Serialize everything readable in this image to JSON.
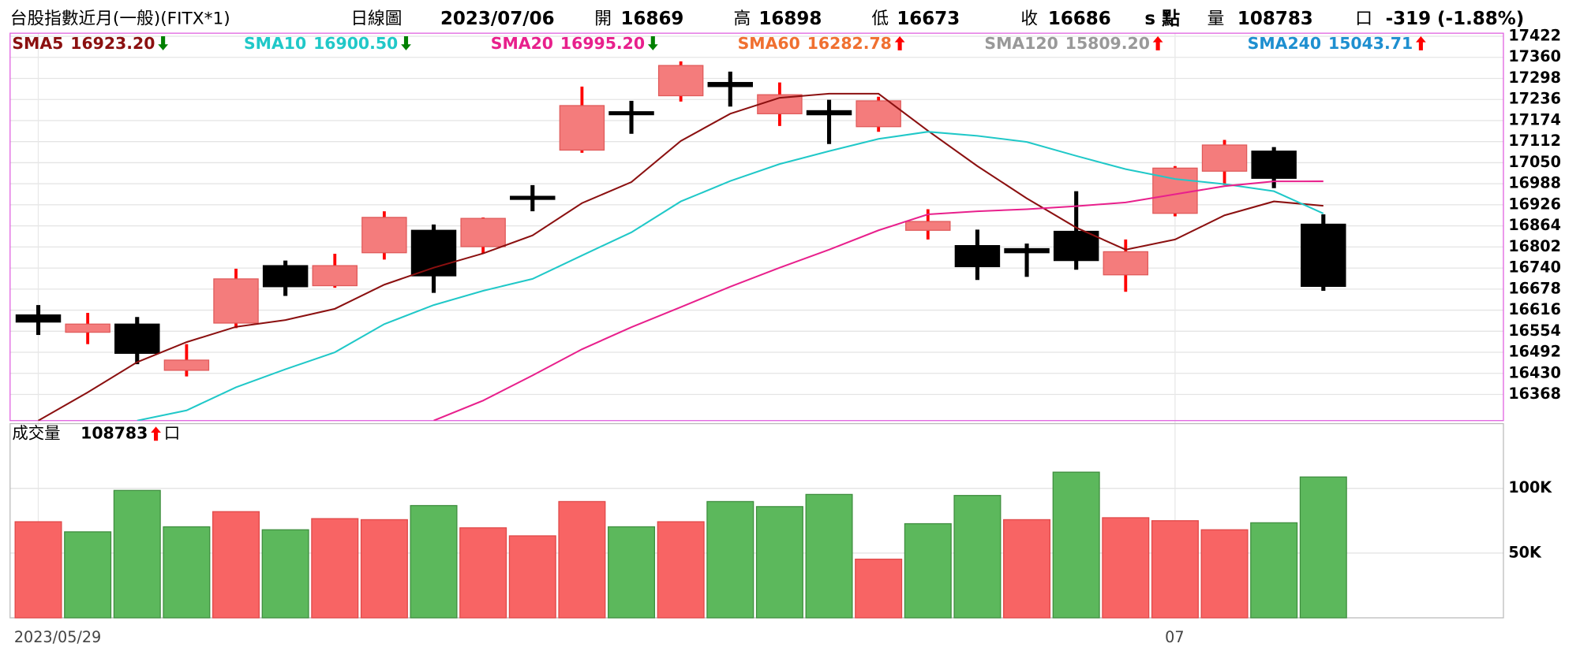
{
  "header": {
    "instrument": "台股指數近月(一般)(FITX*1)",
    "chart_kind": "日線圖",
    "date": "2023/07/06",
    "open_label": "開",
    "open": 16869,
    "high_label": "高",
    "high": 16898,
    "low_label": "低",
    "low": 16673,
    "close_label": "收",
    "close": 16686,
    "unit_label": "s 點",
    "volume_label": "量",
    "volume": 108783,
    "volume_unit": "口",
    "change_label": "-319 (-1.88%)",
    "value_color": "#008a00"
  },
  "chart_data": [
    {
      "type": "candlestick",
      "categories": [
        "2023/05/29",
        null,
        null,
        null,
        null,
        null,
        null,
        null,
        null,
        null,
        null,
        null,
        null,
        null,
        null,
        null,
        null,
        null,
        null,
        null,
        null,
        null,
        null,
        "07",
        null,
        null,
        null
      ],
      "open": [
        16602,
        16551,
        16575,
        16439,
        16578,
        16747,
        16688,
        16785,
        16851,
        16803,
        16951,
        17087,
        17200,
        17247,
        17286,
        17194,
        17203,
        17156,
        16851,
        16806,
        16797,
        16848,
        16720,
        16901,
        17025,
        17084,
        16869
      ],
      "high": [
        16631,
        16608,
        16596,
        16516,
        16738,
        16762,
        16782,
        16907,
        16868,
        16889,
        16984,
        17274,
        17232,
        17348,
        17318,
        17286,
        17235,
        17244,
        16913,
        16853,
        16812,
        16966,
        16824,
        17040,
        17117,
        17096,
        16898
      ],
      "low": [
        16543,
        16516,
        16457,
        16421,
        16563,
        16658,
        16682,
        16765,
        16667,
        16782,
        16907,
        17079,
        17135,
        17230,
        17215,
        17158,
        17105,
        17141,
        16824,
        16705,
        16714,
        16735,
        16670,
        16892,
        16984,
        16975,
        16673
      ],
      "close": [
        16581,
        16575,
        16489,
        16469,
        16708,
        16685,
        16747,
        16889,
        16717,
        16886,
        16942,
        17218,
        17197,
        17336,
        17274,
        17250,
        17191,
        17232,
        16877,
        16744,
        16785,
        16762,
        16788,
        17034,
        17102,
        17004,
        16686
      ],
      "up_color": "#f47c7c",
      "up_wick": "#ff0000",
      "down_color": "#000000",
      "ylim": [
        16291,
        17431
      ],
      "yticks": [
        17422,
        17360,
        17298,
        17236,
        17174,
        17112,
        17050,
        16988,
        16926,
        16864,
        16802,
        16740,
        16678,
        16616,
        16554,
        16492,
        16430,
        16368
      ],
      "grid": true,
      "series": [
        {
          "name": "SMA5",
          "color": "#8b1010",
          "legend_value": {
            "value": 16923.2,
            "label": "16923.20"
          },
          "trend": "down",
          "values": [
            16291,
            16374,
            16463,
            16522,
            16567,
            16587,
            16620,
            16691,
            16741,
            16783,
            16836,
            16931,
            16993,
            17114,
            17194,
            17241,
            17253,
            17253,
            17144,
            17040,
            16945,
            16859,
            16794,
            16824,
            16895,
            16936,
            16923.2
          ]
        },
        {
          "name": "SMA10",
          "color": "#20c8c8",
          "legend_value": {
            "value": 16900.5,
            "label": "16900.50"
          },
          "trend": "down",
          "values": [
            null,
            null,
            16291,
            16321,
            16389,
            16442,
            16492,
            16575,
            16631,
            16673,
            16708,
            16777,
            16845,
            16936,
            16996,
            17046,
            17084,
            17120,
            17141,
            17129,
            17111,
            17070,
            17031,
            17002,
            16987,
            16966,
            16900.5
          ]
        },
        {
          "name": "SMA20",
          "color": "#e8208c",
          "legend_value": {
            "value": 16995.2,
            "label": "16995.20"
          },
          "trend": "down",
          "values": [
            null,
            null,
            null,
            null,
            null,
            null,
            null,
            null,
            16291,
            16350,
            16424,
            16501,
            16566,
            16625,
            16685,
            16741,
            16794,
            16851,
            16898,
            16907,
            16913,
            16922,
            16933,
            16957,
            16981,
            16995,
            16995.2
          ]
        },
        {
          "name": "SMA60",
          "color": "#f07030",
          "legend_value": {
            "value": 16282.78,
            "label": "16282.78"
          },
          "trend": "up"
        },
        {
          "name": "SMA120",
          "color": "#999999",
          "legend_value": {
            "value": 15809.2,
            "label": "15809.20"
          },
          "trend": "up"
        },
        {
          "name": "SMA240",
          "color": "#1e8fd0",
          "legend_value": {
            "value": 15043.71,
            "label": "15043.71"
          },
          "trend": "up"
        }
      ]
    },
    {
      "type": "bar",
      "title": "成交量",
      "last_value": 108783,
      "unit": "口",
      "trend": "up",
      "values": [
        74200,
        66400,
        98400,
        70300,
        82000,
        68000,
        76600,
        75800,
        86700,
        69500,
        63300,
        89800,
        70300,
        74200,
        89800,
        85900,
        95300,
        45300,
        72700,
        94500,
        75800,
        112500,
        77300,
        75000,
        68000,
        73400,
        108783
      ],
      "colors": [
        "#f86464",
        "#5cb85c",
        "#5cb85c",
        "#5cb85c",
        "#f86464",
        "#5cb85c",
        "#f86464",
        "#f86464",
        "#5cb85c",
        "#f86464",
        "#f86464",
        "#f86464",
        "#5cb85c",
        "#f86464",
        "#5cb85c",
        "#5cb85c",
        "#5cb85c",
        "#f86464",
        "#5cb85c",
        "#5cb85c",
        "#f86464",
        "#5cb85c",
        "#f86464",
        "#f86464",
        "#f86464",
        "#5cb85c",
        "#5cb85c"
      ],
      "ylim": [
        0,
        150000
      ],
      "yticks": [
        {
          "value": 100000,
          "label": "100K"
        },
        {
          "value": 50000,
          "label": "50K"
        }
      ],
      "grid": true
    }
  ]
}
